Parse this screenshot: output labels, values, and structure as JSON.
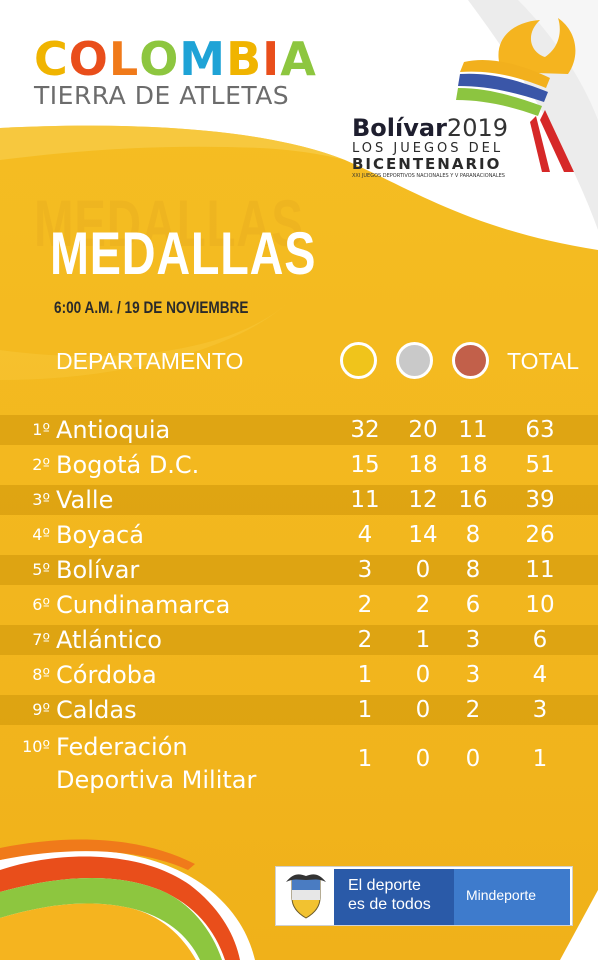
{
  "header": {
    "brand_word_letters": [
      "C",
      "O",
      "L",
      "O",
      "M",
      "B",
      "I",
      "A"
    ],
    "brand_tagline": "TIERRA DE ATLETAS",
    "event_title": "Bolívar",
    "event_year": "2019",
    "event_line1": "LOS JUEGOS DEL",
    "event_line2": "BICENTENARIO",
    "event_line3": "XXI JUEGOS DEPORTIVOS NACIONALES Y V PARANACIONALES"
  },
  "main": {
    "title_bg": "MEDALLAS",
    "title": "MEDALLAS",
    "subtitle": "6:00 A.M. / 19 DE NOVIEMBRE",
    "col_department": "DEPARTAMENTO",
    "col_total": "TOTAL"
  },
  "rows": [
    {
      "rank": "1º",
      "name": "Antioquia",
      "gold": "32",
      "silver": "20",
      "bronze": "11",
      "total": "63"
    },
    {
      "rank": "2º",
      "name": "Bogotá D.C.",
      "gold": "15",
      "silver": "18",
      "bronze": "18",
      "total": "51"
    },
    {
      "rank": "3º",
      "name": "Valle",
      "gold": "11",
      "silver": "12",
      "bronze": "16",
      "total": "39"
    },
    {
      "rank": "4º",
      "name": "Boyacá",
      "gold": "4",
      "silver": "14",
      "bronze": "8",
      "total": "26"
    },
    {
      "rank": "5º",
      "name": "Bolívar",
      "gold": "3",
      "silver": "0",
      "bronze": "8",
      "total": "11"
    },
    {
      "rank": "6º",
      "name": "Cundinamarca",
      "gold": "2",
      "silver": "2",
      "bronze": "6",
      "total": "10"
    },
    {
      "rank": "7º",
      "name": "Atlántico",
      "gold": "2",
      "silver": "1",
      "bronze": "3",
      "total": "6"
    },
    {
      "rank": "8º",
      "name": "Córdoba",
      "gold": "1",
      "silver": "0",
      "bronze": "3",
      "total": "4"
    },
    {
      "rank": "9º",
      "name": "Caldas",
      "gold": "1",
      "silver": "0",
      "bronze": "2",
      "total": "3"
    },
    {
      "rank": "10º",
      "name_line1": "Federación",
      "name_line2": "Deportiva Militar",
      "gold": "1",
      "silver": "0",
      "bronze": "0",
      "total": "1"
    }
  ],
  "footer": {
    "slogan_line1": "El deporte",
    "slogan_line2": "es de todos",
    "ministry": "Mindeporte"
  },
  "colors": {
    "yellow": "#f4b91b",
    "yellow_dark": "#e39e12",
    "gold_medal": "#f0c41b",
    "silver_medal": "#c9c9c9",
    "bronze_medal": "#c2604a",
    "brand_blue": "#2a5aa8"
  }
}
